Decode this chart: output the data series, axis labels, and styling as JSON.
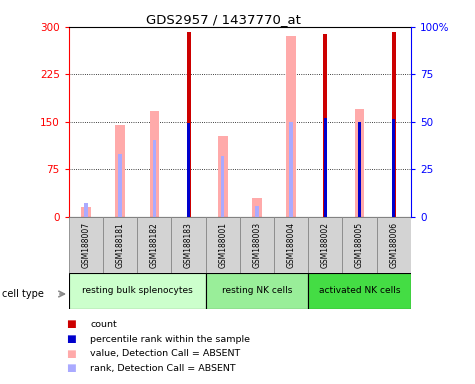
{
  "title": "GDS2957 / 1437770_at",
  "samples": [
    "GSM188007",
    "GSM188181",
    "GSM188182",
    "GSM188183",
    "GSM188001",
    "GSM188003",
    "GSM188004",
    "GSM188002",
    "GSM188005",
    "GSM188006"
  ],
  "groups": [
    {
      "label": "resting bulk splenocytes",
      "start": 0,
      "end": 4,
      "color": "#ccffcc"
    },
    {
      "label": "resting NK cells",
      "start": 4,
      "end": 7,
      "color": "#99ee99"
    },
    {
      "label": "activated NK cells",
      "start": 7,
      "end": 10,
      "color": "#44dd44"
    }
  ],
  "count_values": [
    null,
    null,
    null,
    292,
    null,
    null,
    null,
    289,
    null,
    292
  ],
  "percentile_rank": [
    null,
    null,
    null,
    148,
    null,
    null,
    null,
    156,
    150,
    155
  ],
  "absent_value": [
    15,
    145,
    167,
    null,
    128,
    30,
    286,
    null,
    171,
    null
  ],
  "absent_rank": [
    22,
    99,
    121,
    null,
    97,
    18,
    150,
    null,
    null,
    null
  ],
  "ylim_left": [
    0,
    300
  ],
  "yticks_left": [
    0,
    75,
    150,
    225,
    300
  ],
  "yticks_right": [
    0,
    25,
    50,
    75,
    100
  ],
  "ytick_labels_right": [
    "0",
    "25",
    "50",
    "75",
    "100%"
  ],
  "color_count": "#cc0000",
  "color_percentile": "#0000cc",
  "color_absent_value": "#ffaaaa",
  "color_absent_rank": "#aaaaff",
  "label_count": "count",
  "label_percentile": "percentile rank within the sample",
  "label_absent_value": "value, Detection Call = ABSENT",
  "label_absent_rank": "rank, Detection Call = ABSENT"
}
